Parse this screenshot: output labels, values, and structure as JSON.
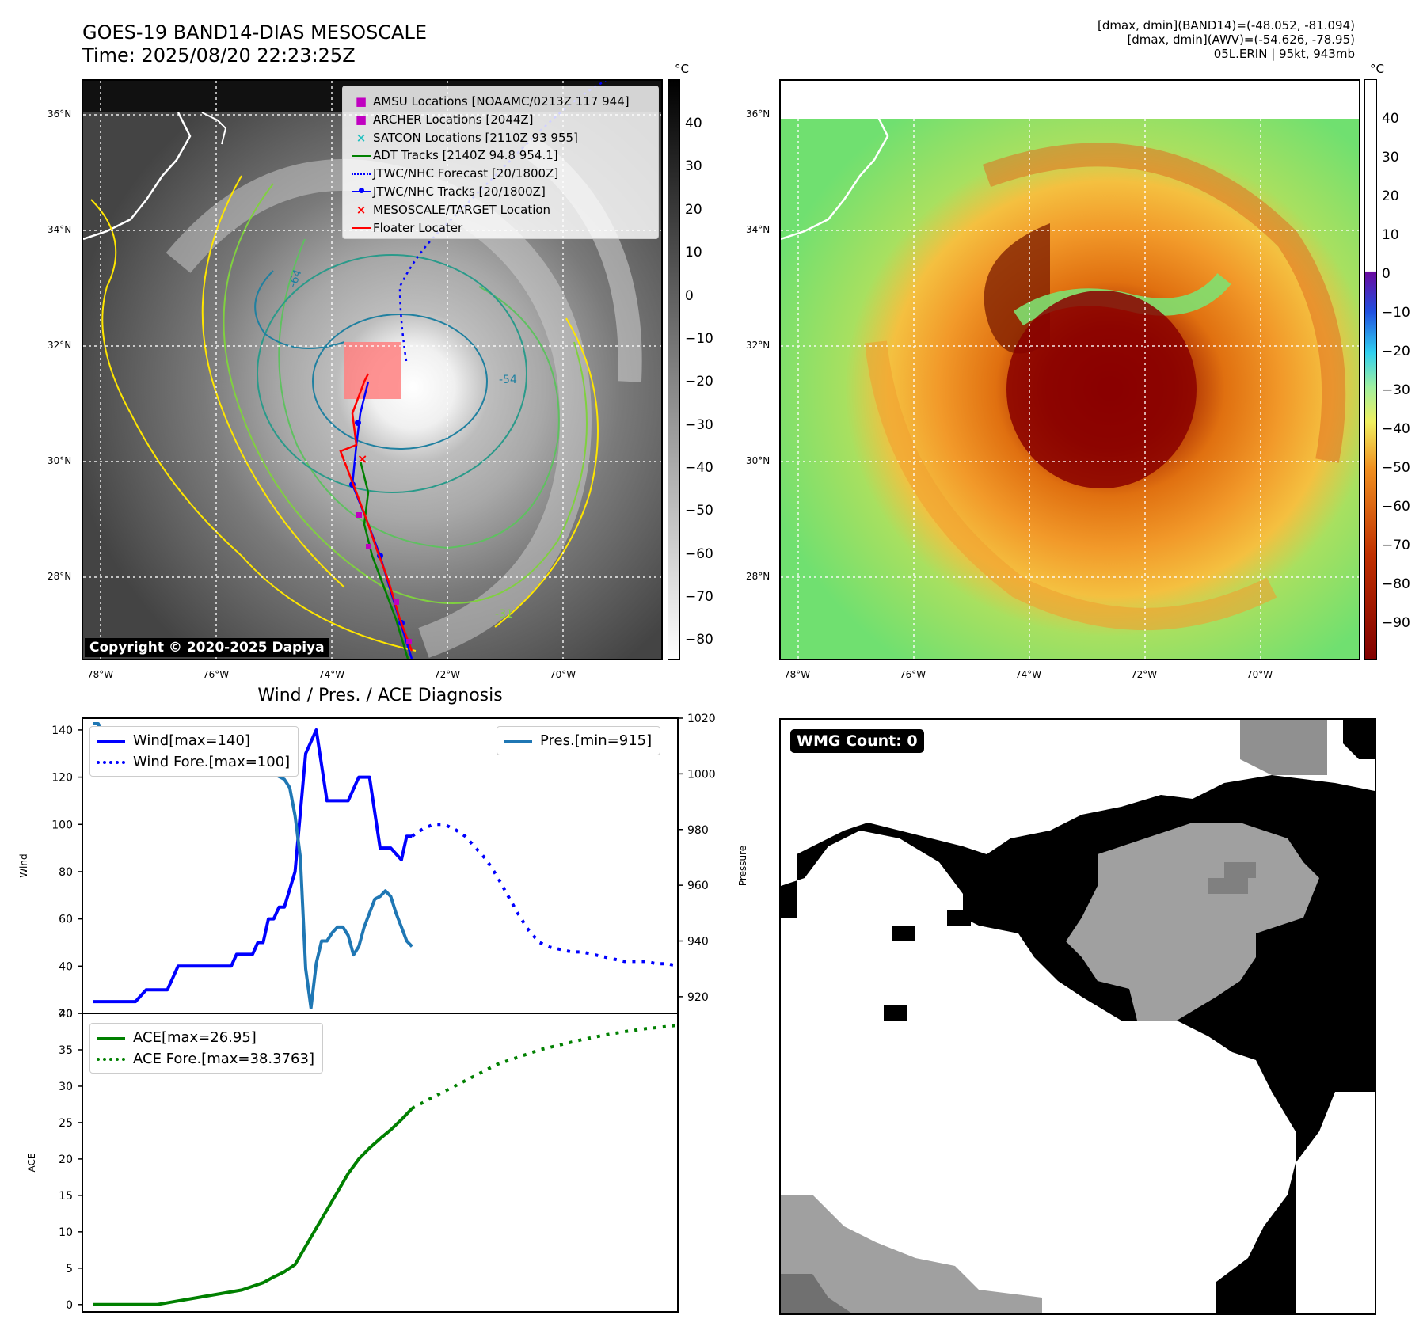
{
  "header": {
    "title_line1": "GOES-19 BAND14-DIAS MESOSCALE",
    "title_line2": "Time: 2025/08/20 22:23:25Z",
    "info_line1": "[dmax, dmin](BAND14)=(-48.052, -81.094)",
    "info_line2": "[dmax, dmin](AWV)=(-54.626, -78.95)",
    "info_line3": "05L.ERIN | 95kt, 943mb"
  },
  "map_axes": {
    "lat_labels": [
      "36°N",
      "34°N",
      "32°N",
      "30°N",
      "28°N"
    ],
    "lon_labels": [
      "78°W",
      "76°W",
      "74°W",
      "72°W",
      "70°W"
    ]
  },
  "ir_panel": {
    "unit": "°C",
    "colorbar_ticks": [
      "40",
      "30",
      "20",
      "10",
      "0",
      "−10",
      "−20",
      "−30",
      "−40",
      "−50",
      "−60",
      "−70",
      "−80"
    ],
    "copyright": "Copyright © 2020-2025 Dapiya",
    "contour_labels": [
      "-54",
      "-64",
      "-31"
    ],
    "legend": [
      {
        "label": "AMSU Locations [NOAAMC/0213Z 117 944]",
        "color": "#c000c0",
        "marker": "square"
      },
      {
        "label": "ARCHER Locations [2044Z]",
        "color": "#c000c0",
        "marker": "square"
      },
      {
        "label": "SATCON Locations [2110Z 93 955]",
        "color": "#20c0c0",
        "marker": "x"
      },
      {
        "label": "ADT Tracks [2140Z 94.8 954.1]",
        "color": "#008000",
        "marker": "line"
      },
      {
        "label": "JTWC/NHC Forecast [20/1800Z]",
        "color": "#0000ff",
        "marker": "dotted"
      },
      {
        "label": "JTWC/NHC Tracks [20/1800Z]",
        "color": "#0000ff",
        "marker": "line-dot"
      },
      {
        "label": "MESOSCALE/TARGET Location",
        "color": "#ff0000",
        "marker": "x"
      },
      {
        "label": "Floater Locater",
        "color": "#ff0000",
        "marker": "line"
      }
    ]
  },
  "awv_panel": {
    "unit": "°C",
    "colorbar_ticks": [
      "40",
      "30",
      "20",
      "10",
      "0",
      "−10",
      "−20",
      "−30",
      "−40",
      "−50",
      "−60",
      "−70",
      "−80",
      "−90"
    ]
  },
  "wmg_panel": {
    "label": "WMG Count: 0"
  },
  "chart_data": [
    {
      "type": "line",
      "title": "Wind / Pres. / ACE Diagnosis",
      "ylabel": "Wind",
      "y2label": "Pressure",
      "ylim": [
        20,
        145
      ],
      "y2lim": [
        914,
        1020
      ],
      "yticks": [
        "140",
        "120",
        "100",
        "80",
        "60",
        "40",
        "20"
      ],
      "y2ticks": [
        "1020",
        "1000",
        "980",
        "960",
        "940",
        "920"
      ],
      "legend_left": [
        "Wind[max=140]",
        "Wind Fore.[max=100]"
      ],
      "legend_right": [
        "Pres.[min=915]"
      ],
      "colors": {
        "wind": "#0000ff",
        "pressure": "#1f77b4"
      },
      "series": [
        {
          "name": "Wind[max=140]",
          "style": "solid",
          "axis": "left",
          "x": [
            0,
            2,
            4,
            6,
            8,
            10,
            12,
            14,
            16,
            18,
            20,
            22,
            24,
            26,
            27,
            28,
            29,
            30,
            31,
            32,
            33,
            34,
            35,
            36,
            38,
            40,
            42,
            44,
            46,
            48,
            50,
            52,
            54,
            56,
            58,
            59,
            60
          ],
          "values": [
            25,
            25,
            25,
            25,
            25,
            30,
            30,
            30,
            40,
            40,
            40,
            40,
            40,
            40,
            45,
            45,
            45,
            45,
            50,
            50,
            60,
            60,
            65,
            65,
            80,
            130,
            140,
            110,
            110,
            110,
            120,
            120,
            90,
            90,
            85,
            95,
            95
          ]
        },
        {
          "name": "Wind Fore.[max=100]",
          "style": "dotted",
          "axis": "left",
          "x": [
            60,
            62,
            64,
            66,
            68,
            70,
            72,
            74,
            76,
            78,
            80,
            82,
            84,
            86,
            88,
            90,
            92,
            94,
            96,
            98,
            100,
            102,
            104,
            106,
            108,
            110
          ],
          "values": [
            95,
            98,
            100,
            100,
            98,
            95,
            90,
            85,
            78,
            70,
            62,
            55,
            50,
            48,
            47,
            46,
            46,
            45,
            44,
            43,
            42,
            42,
            42,
            41,
            41,
            40
          ]
        },
        {
          "name": "Pres.[min=915]",
          "style": "solid",
          "axis": "right",
          "x": [
            0,
            1,
            2,
            3,
            4,
            5,
            6,
            7,
            8,
            9,
            10,
            11,
            12,
            13,
            14,
            15,
            16,
            17,
            18,
            19,
            20,
            21,
            22,
            23,
            24,
            25,
            26,
            27,
            28,
            29,
            30,
            31,
            32,
            33,
            34,
            35,
            36,
            37,
            38,
            39,
            40,
            41,
            42,
            43,
            44,
            45,
            46,
            47,
            48,
            49,
            50,
            51,
            52,
            53,
            54,
            55,
            56,
            57,
            58,
            59,
            60
          ],
          "values": [
            1018,
            1018,
            1012,
            1011,
            1010,
            1009,
            1009,
            1009,
            1009,
            1009,
            1009,
            1008,
            1007,
            1007,
            1006,
            1006,
            1005,
            1005,
            1004,
            1004,
            1004,
            1003,
            1003,
            1003,
            1003,
            1003,
            1003,
            1002,
            1002,
            1002,
            1001,
            1001,
            1001,
            1000,
            1000,
            999,
            998,
            995,
            985,
            970,
            930,
            916,
            932,
            940,
            940,
            943,
            945,
            945,
            942,
            935,
            938,
            945,
            950,
            955,
            956,
            958,
            956,
            950,
            945,
            940,
            938
          ]
        }
      ]
    },
    {
      "type": "line",
      "ylabel": "ACE",
      "ylim": [
        -1,
        40
      ],
      "yticks": [
        "40",
        "35",
        "30",
        "25",
        "20",
        "15",
        "10",
        "5",
        "0"
      ],
      "legend": [
        "ACE[max=26.95]",
        "ACE Fore.[max=38.3763]"
      ],
      "colors": {
        "ace": "#008000"
      },
      "series": [
        {
          "name": "ACE[max=26.95]",
          "style": "solid",
          "x": [
            0,
            6,
            12,
            16,
            20,
            24,
            28,
            32,
            34,
            36,
            38,
            40,
            42,
            44,
            46,
            48,
            50,
            52,
            54,
            56,
            58,
            60
          ],
          "values": [
            0,
            0,
            0,
            0.5,
            1,
            1.5,
            2,
            3,
            3.8,
            4.5,
            5.5,
            8,
            10.5,
            13,
            15.5,
            18,
            20,
            21.5,
            22.8,
            24,
            25.4,
            26.95
          ]
        },
        {
          "name": "ACE Fore.[max=38.3763]",
          "style": "dotted",
          "x": [
            60,
            64,
            68,
            72,
            76,
            80,
            84,
            88,
            92,
            96,
            100,
            104,
            108,
            110
          ],
          "values": [
            26.95,
            28.5,
            30,
            31.5,
            33,
            34,
            35,
            35.7,
            36.4,
            37,
            37.5,
            37.9,
            38.2,
            38.3763
          ]
        }
      ]
    }
  ]
}
